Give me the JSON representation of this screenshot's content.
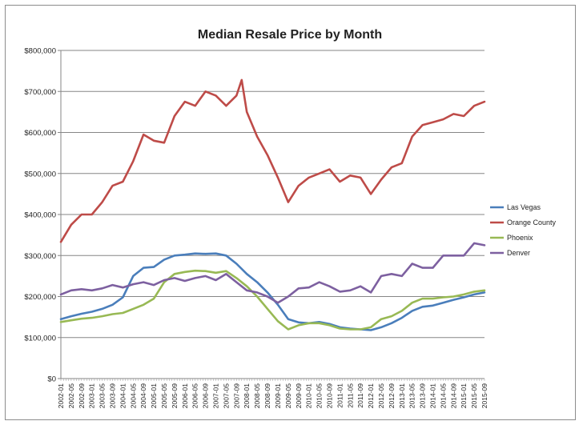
{
  "chart_data": {
    "type": "line",
    "title": "Median Resale Price by Month",
    "xlabel": "",
    "ylabel": "",
    "ylim": [
      0,
      800000
    ],
    "y_ticks": [
      0,
      100000,
      200000,
      300000,
      400000,
      500000,
      600000,
      700000,
      800000
    ],
    "y_tick_labels": [
      "$0",
      "$100,000",
      "$200,000",
      "$300,000",
      "$400,000",
      "$500,000",
      "$600,000",
      "$700,000",
      "$800,000"
    ],
    "x_tick_labels": [
      "2002-01",
      "2002-05",
      "2002-09",
      "2003-01",
      "2003-05",
      "2003-09",
      "2004-01",
      "2004-05",
      "2004-09",
      "2005-01",
      "2005-05",
      "2005-09",
      "2006-01",
      "2006-05",
      "2006-09",
      "2007-01",
      "2007-05",
      "2007-09",
      "2008-01",
      "2008-05",
      "2008-09",
      "2009-01",
      "2009-05",
      "2009-09",
      "2010-01",
      "2010-05",
      "2010-09",
      "2011-01",
      "2011-05",
      "2011-09",
      "2012-01",
      "2012-05",
      "2012-09",
      "2013-01",
      "2013-05",
      "2013-09",
      "2014-01",
      "2014-05",
      "2014-09",
      "2015-01",
      "2015-05",
      "2015-09"
    ],
    "grid": true,
    "legend_position": "right",
    "series": [
      {
        "name": "Las Vegas",
        "color": "#4a7ebb",
        "points": [
          [
            "2002-01",
            145000
          ],
          [
            "2002-05",
            152000
          ],
          [
            "2002-09",
            158000
          ],
          [
            "2003-01",
            163000
          ],
          [
            "2003-05",
            170000
          ],
          [
            "2003-09",
            180000
          ],
          [
            "2004-01",
            198000
          ],
          [
            "2004-05",
            250000
          ],
          [
            "2004-09",
            270000
          ],
          [
            "2005-01",
            272000
          ],
          [
            "2005-05",
            290000
          ],
          [
            "2005-09",
            300000
          ],
          [
            "2006-01",
            302000
          ],
          [
            "2006-05",
            305000
          ],
          [
            "2006-09",
            304000
          ],
          [
            "2007-01",
            305000
          ],
          [
            "2007-05",
            300000
          ],
          [
            "2007-09",
            280000
          ],
          [
            "2008-01",
            255000
          ],
          [
            "2008-05",
            235000
          ],
          [
            "2008-09",
            210000
          ],
          [
            "2009-01",
            180000
          ],
          [
            "2009-05",
            145000
          ],
          [
            "2009-09",
            137000
          ],
          [
            "2010-01",
            135000
          ],
          [
            "2010-05",
            138000
          ],
          [
            "2010-09",
            133000
          ],
          [
            "2011-01",
            125000
          ],
          [
            "2011-05",
            122000
          ],
          [
            "2011-09",
            120000
          ],
          [
            "2012-01",
            118000
          ],
          [
            "2012-05",
            125000
          ],
          [
            "2012-09",
            135000
          ],
          [
            "2013-01",
            148000
          ],
          [
            "2013-05",
            165000
          ],
          [
            "2013-09",
            175000
          ],
          [
            "2014-01",
            178000
          ],
          [
            "2014-05",
            185000
          ],
          [
            "2014-09",
            192000
          ],
          [
            "2015-01",
            198000
          ],
          [
            "2015-05",
            205000
          ],
          [
            "2015-09",
            210000
          ]
        ]
      },
      {
        "name": "Orange County",
        "color": "#be4b48",
        "points": [
          [
            "2002-01",
            333000
          ],
          [
            "2002-05",
            375000
          ],
          [
            "2002-09",
            400000
          ],
          [
            "2003-01",
            400000
          ],
          [
            "2003-05",
            430000
          ],
          [
            "2003-09",
            470000
          ],
          [
            "2004-01",
            480000
          ],
          [
            "2004-05",
            530000
          ],
          [
            "2004-09",
            595000
          ],
          [
            "2005-01",
            580000
          ],
          [
            "2005-05",
            575000
          ],
          [
            "2005-09",
            640000
          ],
          [
            "2006-01",
            675000
          ],
          [
            "2006-05",
            665000
          ],
          [
            "2006-09",
            700000
          ],
          [
            "2007-01",
            690000
          ],
          [
            "2007-05",
            665000
          ],
          [
            "2007-09",
            690000
          ],
          [
            "2007-11",
            728000
          ],
          [
            "2008-01",
            650000
          ],
          [
            "2008-05",
            590000
          ],
          [
            "2008-09",
            545000
          ],
          [
            "2009-01",
            490000
          ],
          [
            "2009-05",
            430000
          ],
          [
            "2009-09",
            470000
          ],
          [
            "2010-01",
            490000
          ],
          [
            "2010-05",
            500000
          ],
          [
            "2010-09",
            510000
          ],
          [
            "2011-01",
            480000
          ],
          [
            "2011-05",
            495000
          ],
          [
            "2011-09",
            490000
          ],
          [
            "2012-01",
            450000
          ],
          [
            "2012-05",
            485000
          ],
          [
            "2012-09",
            515000
          ],
          [
            "2013-01",
            525000
          ],
          [
            "2013-05",
            590000
          ],
          [
            "2013-09",
            618000
          ],
          [
            "2014-01",
            625000
          ],
          [
            "2014-05",
            632000
          ],
          [
            "2014-09",
            645000
          ],
          [
            "2015-01",
            640000
          ],
          [
            "2015-05",
            665000
          ],
          [
            "2015-09",
            675000
          ]
        ]
      },
      {
        "name": "Phoenix",
        "color": "#98b954",
        "points": [
          [
            "2002-01",
            138000
          ],
          [
            "2002-05",
            142000
          ],
          [
            "2002-09",
            146000
          ],
          [
            "2003-01",
            148000
          ],
          [
            "2003-05",
            152000
          ],
          [
            "2003-09",
            157000
          ],
          [
            "2004-01",
            160000
          ],
          [
            "2004-05",
            170000
          ],
          [
            "2004-09",
            180000
          ],
          [
            "2005-01",
            195000
          ],
          [
            "2005-05",
            235000
          ],
          [
            "2005-09",
            255000
          ],
          [
            "2006-01",
            260000
          ],
          [
            "2006-05",
            263000
          ],
          [
            "2006-09",
            262000
          ],
          [
            "2007-01",
            258000
          ],
          [
            "2007-05",
            262000
          ],
          [
            "2007-09",
            245000
          ],
          [
            "2008-01",
            225000
          ],
          [
            "2008-05",
            200000
          ],
          [
            "2008-09",
            170000
          ],
          [
            "2009-01",
            140000
          ],
          [
            "2009-05",
            120000
          ],
          [
            "2009-09",
            130000
          ],
          [
            "2010-01",
            135000
          ],
          [
            "2010-05",
            135000
          ],
          [
            "2010-09",
            130000
          ],
          [
            "2011-01",
            122000
          ],
          [
            "2011-05",
            120000
          ],
          [
            "2011-09",
            120000
          ],
          [
            "2012-01",
            125000
          ],
          [
            "2012-05",
            145000
          ],
          [
            "2012-09",
            152000
          ],
          [
            "2013-01",
            165000
          ],
          [
            "2013-05",
            185000
          ],
          [
            "2013-09",
            195000
          ],
          [
            "2014-01",
            195000
          ],
          [
            "2014-05",
            198000
          ],
          [
            "2014-09",
            200000
          ],
          [
            "2015-01",
            205000
          ],
          [
            "2015-05",
            212000
          ],
          [
            "2015-09",
            215000
          ]
        ]
      },
      {
        "name": "Denver",
        "color": "#7d60a0",
        "points": [
          [
            "2002-01",
            205000
          ],
          [
            "2002-05",
            215000
          ],
          [
            "2002-09",
            218000
          ],
          [
            "2003-01",
            215000
          ],
          [
            "2003-05",
            220000
          ],
          [
            "2003-09",
            228000
          ],
          [
            "2004-01",
            222000
          ],
          [
            "2004-05",
            230000
          ],
          [
            "2004-09",
            235000
          ],
          [
            "2005-01",
            228000
          ],
          [
            "2005-05",
            240000
          ],
          [
            "2005-09",
            245000
          ],
          [
            "2006-01",
            238000
          ],
          [
            "2006-05",
            245000
          ],
          [
            "2006-09",
            250000
          ],
          [
            "2007-01",
            240000
          ],
          [
            "2007-05",
            255000
          ],
          [
            "2007-09",
            235000
          ],
          [
            "2008-01",
            215000
          ],
          [
            "2008-05",
            210000
          ],
          [
            "2008-09",
            200000
          ],
          [
            "2009-01",
            185000
          ],
          [
            "2009-05",
            200000
          ],
          [
            "2009-09",
            220000
          ],
          [
            "2010-01",
            222000
          ],
          [
            "2010-05",
            235000
          ],
          [
            "2010-09",
            225000
          ],
          [
            "2011-01",
            212000
          ],
          [
            "2011-05",
            215000
          ],
          [
            "2011-09",
            225000
          ],
          [
            "2012-01",
            210000
          ],
          [
            "2012-05",
            250000
          ],
          [
            "2012-09",
            255000
          ],
          [
            "2013-01",
            250000
          ],
          [
            "2013-05",
            280000
          ],
          [
            "2013-09",
            270000
          ],
          [
            "2014-01",
            270000
          ],
          [
            "2014-05",
            300000
          ],
          [
            "2014-09",
            300000
          ],
          [
            "2015-01",
            300000
          ],
          [
            "2015-05",
            330000
          ],
          [
            "2015-09",
            325000
          ]
        ]
      }
    ]
  }
}
